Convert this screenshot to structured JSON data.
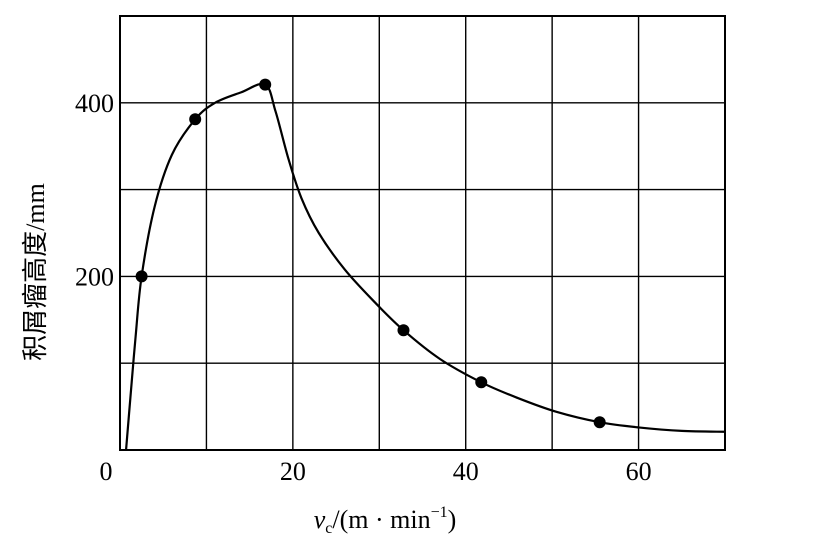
{
  "chart_data": {
    "type": "scatter",
    "xlabel_var": "v",
    "xlabel_sub": "c",
    "xlabel_unit_pre": "/(m · min",
    "xlabel_unit_sup": "−1",
    "xlabel_unit_post": ")",
    "ylabel": "积屑瘤高度/mm",
    "xlim": [
      0,
      70
    ],
    "ylim": [
      0,
      500
    ],
    "x_ticks": [
      0,
      10,
      20,
      30,
      40,
      50,
      60,
      70
    ],
    "y_ticks": [
      0,
      100,
      200,
      300,
      400,
      500
    ],
    "x_tick_labels": [
      {
        "value": 0,
        "label": "0"
      },
      {
        "value": 20,
        "label": "20"
      },
      {
        "value": 40,
        "label": "40"
      },
      {
        "value": 60,
        "label": "60"
      }
    ],
    "y_tick_labels": [
      {
        "value": 200,
        "label": "200"
      },
      {
        "value": 400,
        "label": "400"
      }
    ],
    "grid": true,
    "series": [
      {
        "points": [
          {
            "x": 2.5,
            "y": 200
          },
          {
            "x": 8.7,
            "y": 381
          },
          {
            "x": 16.8,
            "y": 421
          },
          {
            "x": 32.8,
            "y": 138
          },
          {
            "x": 41.8,
            "y": 78
          },
          {
            "x": 55.5,
            "y": 32
          }
        ]
      }
    ],
    "fitted_curve": [
      {
        "x": 0.7,
        "y": 0
      },
      {
        "x": 1.2,
        "y": 60
      },
      {
        "x": 1.8,
        "y": 130
      },
      {
        "x": 2.5,
        "y": 200
      },
      {
        "x": 4,
        "y": 280
      },
      {
        "x": 6,
        "y": 340
      },
      {
        "x": 8.7,
        "y": 381
      },
      {
        "x": 11,
        "y": 400
      },
      {
        "x": 14,
        "y": 412
      },
      {
        "x": 16.8,
        "y": 421
      },
      {
        "x": 18,
        "y": 390
      },
      {
        "x": 19.5,
        "y": 335
      },
      {
        "x": 21,
        "y": 290
      },
      {
        "x": 23,
        "y": 250
      },
      {
        "x": 26,
        "y": 208
      },
      {
        "x": 29.5,
        "y": 170
      },
      {
        "x": 32.8,
        "y": 138
      },
      {
        "x": 37,
        "y": 105
      },
      {
        "x": 41.8,
        "y": 78
      },
      {
        "x": 46,
        "y": 60
      },
      {
        "x": 50.5,
        "y": 44
      },
      {
        "x": 55.5,
        "y": 32
      },
      {
        "x": 60,
        "y": 26
      },
      {
        "x": 65,
        "y": 22
      },
      {
        "x": 70,
        "y": 21
      }
    ]
  }
}
